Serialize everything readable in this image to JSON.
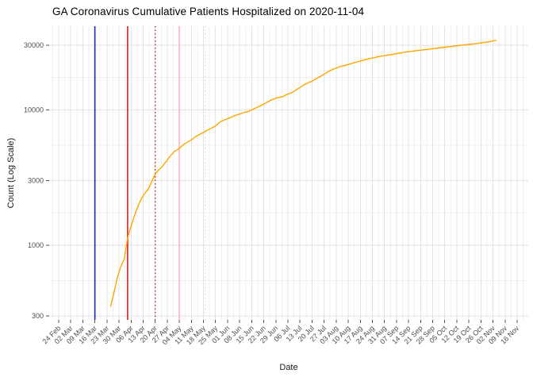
{
  "title": "GA Coronavirus Cumulative Patients Hospitalized on 2020-11-04",
  "chart_data": {
    "type": "line",
    "title": "GA Coronavirus Cumulative Patients Hospitalized on 2020-11-04",
    "xlabel": "Date",
    "ylabel": "Count (Log Scale)",
    "y_scale": "log10",
    "ylim": [
      280,
      40000
    ],
    "grid": true,
    "legend": "none",
    "colors": {
      "series_line": "#FFA500",
      "grid_major": "#E3E3E3",
      "grid_minor": "#F0F0F0",
      "axis_text": "#4D4D4D",
      "tick_mark": "#555555"
    },
    "y_ticks": [
      300,
      1000,
      3000,
      10000,
      30000
    ],
    "y_minor_ticks": [
      548,
      1732,
      5477,
      17321
    ],
    "x_axis_start_date": "2020-02-24",
    "x_tick_labels": [
      "24 Feb",
      "02 Mar",
      "09 Mar",
      "16 Mar",
      "23 Mar",
      "30 Mar",
      "06 Apr",
      "13 Apr",
      "20 Apr",
      "27 Apr",
      "04 May",
      "11 May",
      "18 May",
      "25 May",
      "01 Jun",
      "08 Jun",
      "15 Jun",
      "22 Jun",
      "29 Jun",
      "06 Jul",
      "13 Jul",
      "20 Jul",
      "27 Jul",
      "03 Aug",
      "10 Aug",
      "17 Aug",
      "24 Aug",
      "31 Aug",
      "07 Sep",
      "14 Sep",
      "21 Sep",
      "28 Sep",
      "05 Oct",
      "12 Oct",
      "19 Oct",
      "26 Oct",
      "02 Nov",
      "09 Nov",
      "16 Nov"
    ],
    "vlines": [
      {
        "name": "event-line-blue-solid",
        "date": "2020-03-16",
        "color": "#2323CE",
        "style": "solid",
        "width": 1.6
      },
      {
        "name": "event-line-red-solid",
        "date": "2020-04-04",
        "color": "#DD2020",
        "style": "solid",
        "width": 1.6
      },
      {
        "name": "event-line-red-dotted",
        "date": "2020-04-20",
        "color": "#C32222",
        "style": "dotted",
        "width": 1.4
      },
      {
        "name": "event-line-pink-solid",
        "date": "2020-05-04",
        "color": "#FFC0CB",
        "style": "solid",
        "width": 2.0
      },
      {
        "name": "event-line-pink-dotted",
        "date": "2020-05-19",
        "color": "#FFD7DE",
        "style": "dotted",
        "width": 1.6
      }
    ],
    "series": [
      {
        "name": "cumulative-patients-hospitalized",
        "color": "#FFA500",
        "points": [
          [
            "2020-03-25",
            350
          ],
          [
            "2020-03-27",
            440
          ],
          [
            "2020-03-29",
            575
          ],
          [
            "2020-03-31",
            690
          ],
          [
            "2020-04-02",
            790
          ],
          [
            "2020-04-04",
            1130
          ],
          [
            "2020-04-06",
            1390
          ],
          [
            "2020-04-09",
            1800
          ],
          [
            "2020-04-11",
            2070
          ],
          [
            "2020-04-13",
            2330
          ],
          [
            "2020-04-16",
            2600
          ],
          [
            "2020-04-18",
            2950
          ],
          [
            "2020-04-20",
            3350
          ],
          [
            "2020-04-22",
            3600
          ],
          [
            "2020-04-24",
            3800
          ],
          [
            "2020-04-27",
            4250
          ],
          [
            "2020-04-29",
            4600
          ],
          [
            "2020-05-01",
            4900
          ],
          [
            "2020-05-04",
            5200
          ],
          [
            "2020-05-07",
            5600
          ],
          [
            "2020-05-09",
            5800
          ],
          [
            "2020-05-11",
            6000
          ],
          [
            "2020-05-14",
            6400
          ],
          [
            "2020-05-16",
            6600
          ],
          [
            "2020-05-18",
            6800
          ],
          [
            "2020-05-21",
            7150
          ],
          [
            "2020-05-23",
            7350
          ],
          [
            "2020-05-25",
            7600
          ],
          [
            "2020-05-28",
            8200
          ],
          [
            "2020-05-31",
            8500
          ],
          [
            "2020-06-03",
            8800
          ],
          [
            "2020-06-05",
            9050
          ],
          [
            "2020-06-08",
            9300
          ],
          [
            "2020-06-11",
            9600
          ],
          [
            "2020-06-13",
            9700
          ],
          [
            "2020-06-15",
            10000
          ],
          [
            "2020-06-18",
            10400
          ],
          [
            "2020-06-20",
            10700
          ],
          [
            "2020-06-22",
            11000
          ],
          [
            "2020-06-25",
            11600
          ],
          [
            "2020-06-27",
            11900
          ],
          [
            "2020-06-29",
            12200
          ],
          [
            "2020-07-01",
            12350
          ],
          [
            "2020-07-03",
            12500
          ],
          [
            "2020-07-06",
            13100
          ],
          [
            "2020-07-08",
            13300
          ],
          [
            "2020-07-11",
            14100
          ],
          [
            "2020-07-13",
            14600
          ],
          [
            "2020-07-15",
            15200
          ],
          [
            "2020-07-18",
            15900
          ],
          [
            "2020-07-20",
            16300
          ],
          [
            "2020-07-22",
            16900
          ],
          [
            "2020-07-25",
            17700
          ],
          [
            "2020-07-27",
            18300
          ],
          [
            "2020-07-29",
            19000
          ],
          [
            "2020-08-01",
            19900
          ],
          [
            "2020-08-03",
            20300
          ],
          [
            "2020-08-05",
            20800
          ],
          [
            "2020-08-08",
            21300
          ],
          [
            "2020-08-10",
            21600
          ],
          [
            "2020-08-13",
            22200
          ],
          [
            "2020-08-15",
            22600
          ],
          [
            "2020-08-17",
            22900
          ],
          [
            "2020-08-20",
            23500
          ],
          [
            "2020-08-22",
            23800
          ],
          [
            "2020-08-24",
            24100
          ],
          [
            "2020-08-27",
            24600
          ],
          [
            "2020-08-29",
            24900
          ],
          [
            "2020-08-31",
            25100
          ],
          [
            "2020-09-03",
            25500
          ],
          [
            "2020-09-05",
            25700
          ],
          [
            "2020-09-07",
            26000
          ],
          [
            "2020-09-10",
            26400
          ],
          [
            "2020-09-12",
            26700
          ],
          [
            "2020-09-14",
            26900
          ],
          [
            "2020-09-17",
            27200
          ],
          [
            "2020-09-19",
            27400
          ],
          [
            "2020-09-21",
            27600
          ],
          [
            "2020-09-24",
            27900
          ],
          [
            "2020-09-26",
            28000
          ],
          [
            "2020-09-28",
            28300
          ],
          [
            "2020-10-01",
            28600
          ],
          [
            "2020-10-03",
            28800
          ],
          [
            "2020-10-05",
            29000
          ],
          [
            "2020-10-08",
            29300
          ],
          [
            "2020-10-10",
            29500
          ],
          [
            "2020-10-12",
            29700
          ],
          [
            "2020-10-15",
            30100
          ],
          [
            "2020-10-17",
            30200
          ],
          [
            "2020-10-19",
            30400
          ],
          [
            "2020-10-22",
            30700
          ],
          [
            "2020-10-24",
            30900
          ],
          [
            "2020-10-26",
            31200
          ],
          [
            "2020-10-29",
            31600
          ],
          [
            "2020-10-31",
            31900
          ],
          [
            "2020-11-02",
            32300
          ],
          [
            "2020-11-04",
            32700
          ]
        ]
      }
    ]
  }
}
